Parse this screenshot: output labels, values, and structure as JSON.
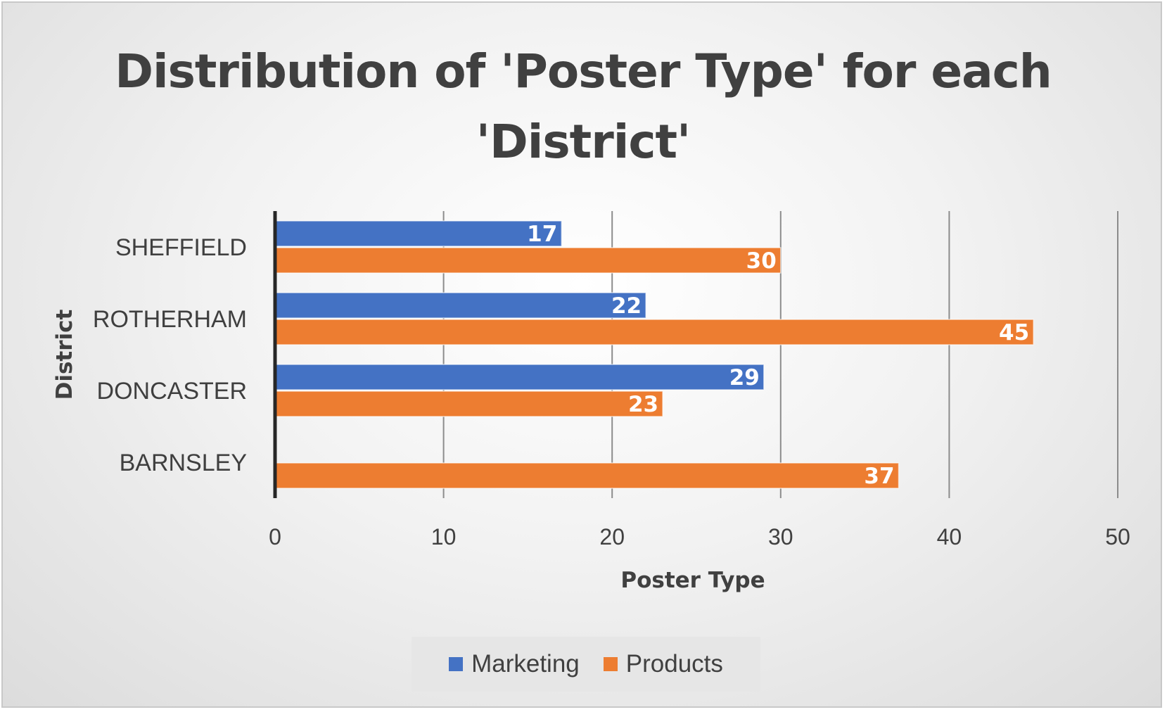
{
  "chart_data": {
    "type": "bar",
    "orientation": "horizontal",
    "title": "Distribution of 'Poster Type' for each 'District'",
    "xlabel": "Poster Type",
    "ylabel": "District",
    "categories": [
      "SHEFFIELD",
      "ROTHERHAM",
      "DONCASTER",
      "BARNSLEY"
    ],
    "series": [
      {
        "name": "Marketing",
        "color": "#4472c4",
        "values": [
          17,
          22,
          29,
          null
        ]
      },
      {
        "name": "Products",
        "color": "#ed7d31",
        "values": [
          30,
          45,
          23,
          37
        ]
      }
    ],
    "xlim": [
      0,
      50
    ],
    "xticks": [
      0,
      10,
      20,
      30,
      40,
      50
    ],
    "grid": true,
    "data_labels": true,
    "legend_position": "bottom"
  }
}
